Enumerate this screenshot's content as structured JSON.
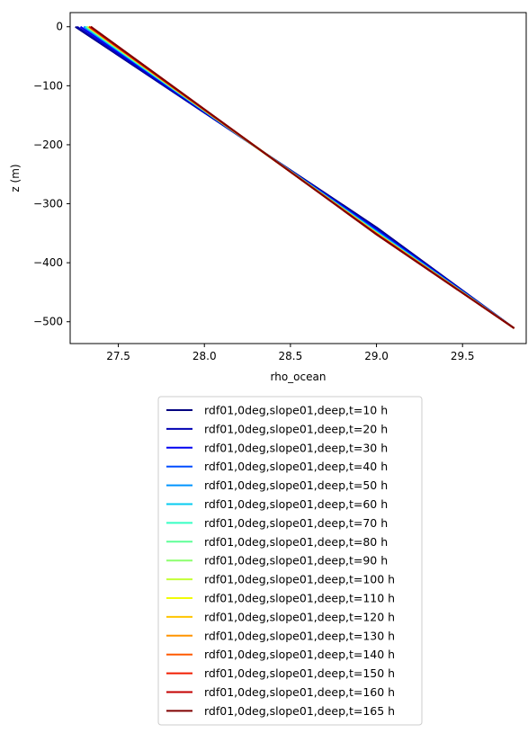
{
  "chart_data": {
    "type": "line",
    "xlabel": "rho_ocean",
    "ylabel": "z (m)",
    "xlim": [
      27.22,
      29.87
    ],
    "ylim": [
      -537,
      24
    ],
    "xticks": [
      "27.5",
      "28.0",
      "28.5",
      "29.0",
      "29.5"
    ],
    "yticks": [
      "0",
      "−100",
      "−200",
      "−300",
      "−400",
      "−500"
    ],
    "grid": false,
    "legend_placement": "below",
    "series": [
      {
        "name": "rdf01,0deg,slope01,deep,t=10 h",
        "color": "#000080",
        "x": [
          27.25,
          29.0,
          29.8
        ],
        "y": [
          0,
          -340,
          -511
        ]
      },
      {
        "name": "rdf01,0deg,slope01,deep,t=20 h",
        "color": "#0000b3",
        "x": [
          27.26,
          29.0,
          29.8
        ],
        "y": [
          0,
          -342,
          -511
        ]
      },
      {
        "name": "rdf01,0deg,slope01,deep,t=30 h",
        "color": "#0000f1",
        "x": [
          27.28,
          29.0,
          29.8
        ],
        "y": [
          0,
          -344,
          -511
        ]
      },
      {
        "name": "rdf01,0deg,slope01,deep,t=40 h",
        "color": "#004dff",
        "x": [
          27.3,
          29.0,
          29.8
        ],
        "y": [
          0,
          -346,
          -511
        ]
      },
      {
        "name": "rdf01,0deg,slope01,deep,t=50 h",
        "color": "#0094ff",
        "x": [
          27.3,
          29.0,
          29.8
        ],
        "y": [
          0,
          -347,
          -511
        ]
      },
      {
        "name": "rdf01,0deg,slope01,deep,t=60 h",
        "color": "#06cbf0",
        "x": [
          27.31,
          29.0,
          29.8
        ],
        "y": [
          0,
          -348,
          -511
        ]
      },
      {
        "name": "rdf01,0deg,slope01,deep,t=70 h",
        "color": "#36ffc4",
        "x": [
          27.31,
          29.0,
          29.8
        ],
        "y": [
          0,
          -349,
          -511
        ]
      },
      {
        "name": "rdf01,0deg,slope01,deep,t=80 h",
        "color": "#5fff97",
        "x": [
          27.32,
          29.0,
          29.8
        ],
        "y": [
          0,
          -349,
          -511
        ]
      },
      {
        "name": "rdf01,0deg,slope01,deep,t=90 h",
        "color": "#8cff6d",
        "x": [
          27.32,
          29.0,
          29.8
        ],
        "y": [
          0,
          -350,
          -511
        ]
      },
      {
        "name": "rdf01,0deg,slope01,deep,t=100 h",
        "color": "#c4ff36",
        "x": [
          27.32,
          29.0,
          29.8
        ],
        "y": [
          0,
          -350,
          -511
        ]
      },
      {
        "name": "rdf01,0deg,slope01,deep,t=110 h",
        "color": "#f1fc06",
        "x": [
          27.33,
          29.0,
          29.8
        ],
        "y": [
          0,
          -350,
          -511
        ]
      },
      {
        "name": "rdf01,0deg,slope01,deep,t=120 h",
        "color": "#ffc400",
        "x": [
          27.33,
          29.0,
          29.8
        ],
        "y": [
          0,
          -351,
          -511
        ]
      },
      {
        "name": "rdf01,0deg,slope01,deep,t=130 h",
        "color": "#ff9400",
        "x": [
          27.33,
          29.0,
          29.8
        ],
        "y": [
          0,
          -351,
          -511
        ]
      },
      {
        "name": "rdf01,0deg,slope01,deep,t=140 h",
        "color": "#ff5a00",
        "x": [
          27.33,
          29.0,
          29.8
        ],
        "y": [
          0,
          -351,
          -511
        ]
      },
      {
        "name": "rdf01,0deg,slope01,deep,t=150 h",
        "color": "#f11d00",
        "x": [
          27.33,
          29.0,
          29.8
        ],
        "y": [
          0,
          -351,
          -511
        ]
      },
      {
        "name": "rdf01,0deg,slope01,deep,t=160 h",
        "color": "#c40000",
        "x": [
          27.34,
          29.0,
          29.8
        ],
        "y": [
          0,
          -352,
          -511
        ]
      },
      {
        "name": "rdf01,0deg,slope01,deep,t=165 h",
        "color": "#800000",
        "x": [
          27.34,
          29.0,
          29.8
        ],
        "y": [
          0,
          -352,
          -511
        ]
      }
    ]
  }
}
